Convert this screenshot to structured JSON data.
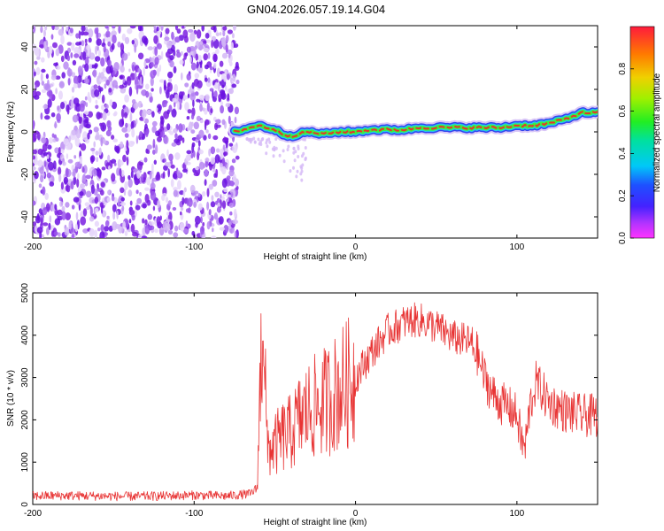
{
  "figure": {
    "title": "GN04.2026.057.19.14.G04"
  },
  "colors": {
    "snr_line": "#e83434",
    "scatter_purple": "#7a1fe0",
    "scatter_light": "#c9a6f0",
    "track_core": "#e8322a",
    "track_green": "#3cf03c",
    "track_cyan": "#22c8f0",
    "track_blue": "#3344ee"
  },
  "colorbar": {
    "label": "Normalized spectral amplitude",
    "ticks": [
      "0.0",
      "0.2",
      "0.4",
      "0.6",
      "0.8"
    ],
    "tick_values": [
      0.0,
      0.2,
      0.4,
      0.6,
      0.8
    ],
    "range": [
      0,
      1
    ]
  },
  "chart_data": [
    {
      "type": "heatmap",
      "title": "GN04.2026.057.19.14.G04",
      "xlabel": "Height of straight line (km)",
      "ylabel": "Frequency (Hz)",
      "xlim": [
        -200,
        150
      ],
      "ylim": [
        -50,
        50
      ],
      "xticks": [
        -200,
        -100,
        0,
        100
      ],
      "xtick_labels": [
        "-200",
        "-100",
        "0",
        "100"
      ],
      "yticks": [
        -40,
        -20,
        0,
        20,
        40
      ],
      "ytick_labels": [
        "-40",
        "-20",
        "0",
        "20",
        "40"
      ],
      "noise_region_x": [
        -200,
        -73
      ],
      "track": {
        "x": [
          -75,
          -70,
          -65,
          -60,
          -55,
          -50,
          -45,
          -40,
          -30,
          -20,
          -10,
          0,
          10,
          20,
          30,
          40,
          50,
          60,
          70,
          80,
          90,
          100,
          110,
          120,
          130,
          140,
          150
        ],
        "y": [
          0,
          1,
          2,
          3,
          2,
          1,
          -1,
          -2,
          0,
          -1,
          0,
          0,
          1,
          1,
          1,
          2,
          2,
          2,
          2,
          2,
          2,
          3,
          3,
          4,
          6,
          9,
          9
        ]
      }
    },
    {
      "type": "line",
      "xlabel": "Height of straight line (km)",
      "ylabel": "SNR (10 * v/v)",
      "xlim": [
        -200,
        150
      ],
      "ylim": [
        0,
        5000
      ],
      "xticks": [
        -200,
        -100,
        0,
        100
      ],
      "xtick_labels": [
        "-200",
        "-100",
        "0",
        "100"
      ],
      "yticks": [
        0,
        1000,
        2000,
        3000,
        4000,
        5000
      ],
      "ytick_labels": [
        "0",
        "1000",
        "2000",
        "3000",
        "4000",
        "5000"
      ],
      "series": [
        {
          "name": "SNR",
          "x": [
            -200,
            -180,
            -160,
            -140,
            -120,
            -100,
            -80,
            -65,
            -61,
            -60,
            -58,
            -57,
            -55,
            -50,
            -45,
            -40,
            -35,
            -30,
            -25,
            -20,
            -10,
            0,
            10,
            20,
            30,
            35,
            40,
            50,
            60,
            70,
            75,
            80,
            85,
            90,
            95,
            100,
            103,
            105,
            108,
            112,
            120,
            130,
            140,
            150
          ],
          "y": [
            200,
            210,
            200,
            190,
            200,
            220,
            200,
            250,
            400,
            1600,
            4100,
            5000,
            1300,
            1400,
            1600,
            1700,
            2000,
            2200,
            2300,
            2400,
            2700,
            3000,
            3600,
            4100,
            4300,
            4350,
            4350,
            4200,
            3950,
            3850,
            3600,
            3000,
            2600,
            2400,
            2300,
            2100,
            1500,
            1300,
            2300,
            2900,
            2400,
            2200,
            2100,
            2100
          ]
        }
      ]
    }
  ]
}
